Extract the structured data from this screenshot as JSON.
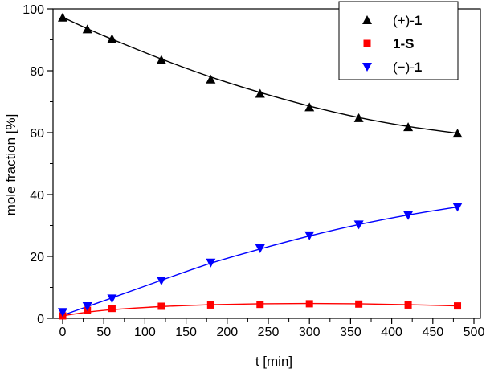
{
  "chart_data": {
    "type": "scatter",
    "title": "",
    "xlabel": "t [min]",
    "ylabel": "mole fraction [%]",
    "xlim": [
      0,
      500
    ],
    "ylim": [
      0,
      100
    ],
    "xticks": [
      0,
      50,
      100,
      150,
      200,
      250,
      300,
      350,
      400,
      450,
      500
    ],
    "yticks": [
      0,
      20,
      40,
      60,
      80,
      100
    ],
    "grid": false,
    "legend_position": "top-right",
    "series": [
      {
        "name": "(+)-1",
        "label_prefix": "(+)-",
        "label_bold": "1",
        "marker": "triangle-up",
        "color": "#000000",
        "x": [
          0,
          30,
          60,
          120,
          180,
          240,
          300,
          360,
          420,
          480
        ],
        "y": [
          97.2,
          93.4,
          90.3,
          83.5,
          77.2,
          72.6,
          68.2,
          64.7,
          61.8,
          59.7
        ],
        "fit": [
          97.3,
          93.6,
          90.2,
          83.8,
          78.0,
          73.0,
          68.6,
          64.9,
          62.0,
          59.8
        ]
      },
      {
        "name": "1-S",
        "label_prefix": "",
        "label_bold": "1-S",
        "marker": "square",
        "color": "#ff0000",
        "x": [
          0,
          30,
          60,
          120,
          180,
          240,
          300,
          360,
          420,
          480
        ],
        "y": [
          0.8,
          2.6,
          3.2,
          3.9,
          4.3,
          4.5,
          4.7,
          4.6,
          4.3,
          4.0
        ],
        "fit": [
          0.8,
          2.0,
          2.8,
          3.8,
          4.4,
          4.7,
          4.8,
          4.7,
          4.4,
          4.0
        ]
      },
      {
        "name": "(−)-1",
        "label_prefix": "(−)-",
        "label_bold": "1",
        "marker": "triangle-down",
        "color": "#0000ff",
        "x": [
          0,
          30,
          60,
          120,
          180,
          240,
          300,
          360,
          420,
          480
        ],
        "y": [
          2.0,
          3.9,
          6.4,
          12.2,
          18.0,
          22.6,
          26.8,
          30.3,
          33.3,
          36.0
        ],
        "fit": [
          1.0,
          3.8,
          6.6,
          12.3,
          17.8,
          22.4,
          26.6,
          30.3,
          33.4,
          36.0
        ]
      }
    ]
  }
}
